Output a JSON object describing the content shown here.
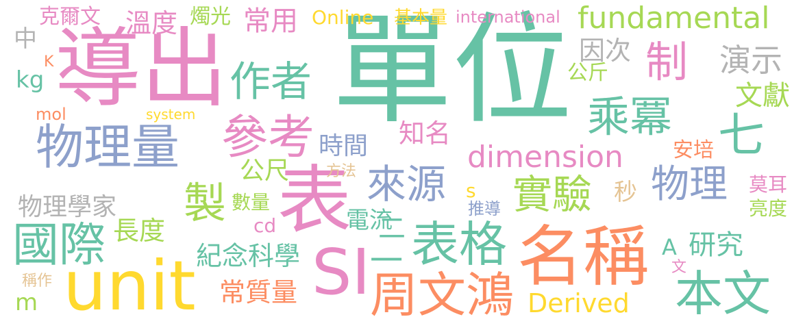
{
  "palette": {
    "green": "#66c2a5",
    "orange": "#fc8d62",
    "blue": "#8da0cb",
    "pink": "#e78ac3",
    "lime": "#a6d854",
    "yellow": "#ffd92f",
    "tan": "#e5c494",
    "grey": "#b3b3b3"
  },
  "words": [
    {
      "text": "單位",
      "color": "green"
    },
    {
      "text": "導出",
      "color": "pink"
    },
    {
      "text": "unit",
      "color": "yellow"
    },
    {
      "text": "名稱",
      "color": "orange"
    },
    {
      "text": "表",
      "color": "pink"
    },
    {
      "text": "SI",
      "color": "pink"
    },
    {
      "text": "物理量",
      "color": "blue"
    },
    {
      "text": "周文鴻",
      "color": "orange"
    },
    {
      "text": "國際",
      "color": "green"
    },
    {
      "text": "表格",
      "color": "green"
    },
    {
      "text": "參考",
      "color": "pink"
    },
    {
      "text": "來源",
      "color": "blue"
    },
    {
      "text": "物理",
      "color": "blue"
    },
    {
      "text": "本文",
      "color": "green"
    },
    {
      "text": "實驗",
      "color": "lime"
    },
    {
      "text": "製",
      "color": "lime"
    },
    {
      "text": "作者",
      "color": "green"
    },
    {
      "text": "制",
      "color": "pink"
    },
    {
      "text": "乘冪",
      "color": "green"
    },
    {
      "text": "七",
      "color": "green"
    },
    {
      "text": "fundamental",
      "color": "lime"
    },
    {
      "text": "dimension",
      "color": "pink"
    },
    {
      "text": "Derived",
      "color": "yellow"
    },
    {
      "text": "研究",
      "color": "green"
    },
    {
      "text": "演示",
      "color": "grey"
    },
    {
      "text": "物理學家",
      "color": "grey"
    },
    {
      "text": "紀念科學",
      "color": "green"
    },
    {
      "text": "常質量",
      "color": "orange"
    },
    {
      "text": "長度",
      "color": "lime"
    },
    {
      "text": "電流",
      "color": "green"
    },
    {
      "text": "文獻",
      "color": "lime"
    },
    {
      "text": "時間",
      "color": "blue"
    },
    {
      "text": "知名",
      "color": "pink"
    },
    {
      "text": "常用",
      "color": "pink"
    },
    {
      "text": "溫度",
      "color": "pink"
    },
    {
      "text": "燭光",
      "color": "lime"
    },
    {
      "text": "克爾文",
      "color": "pink"
    },
    {
      "text": "因次",
      "color": "grey"
    },
    {
      "text": "公斤",
      "color": "lime"
    },
    {
      "text": "安培",
      "color": "orange"
    },
    {
      "text": "公尺",
      "color": "lime"
    },
    {
      "text": "數量",
      "color": "lime"
    },
    {
      "text": "莫耳",
      "color": "pink"
    },
    {
      "text": "亮度",
      "color": "lime"
    },
    {
      "text": "Online",
      "color": "yellow"
    },
    {
      "text": "基本量",
      "color": "yellow"
    },
    {
      "text": "international",
      "color": "pink"
    },
    {
      "text": "kg",
      "color": "green"
    },
    {
      "text": "mol",
      "color": "orange"
    },
    {
      "text": "system",
      "color": "yellow"
    },
    {
      "text": "cd",
      "color": "pink"
    },
    {
      "text": "推導",
      "color": "blue"
    },
    {
      "text": "方法",
      "color": "tan"
    },
    {
      "text": "秒",
      "color": "tan"
    },
    {
      "text": "A",
      "color": "green"
    },
    {
      "text": "文",
      "color": "pink"
    },
    {
      "text": "稱作",
      "color": "tan"
    },
    {
      "text": "m",
      "color": "lime"
    },
    {
      "text": "s",
      "color": "yellow"
    },
    {
      "text": "中",
      "color": "grey"
    },
    {
      "text": "K",
      "color": "orange"
    },
    {
      "text": "二",
      "color": "green"
    },
    {
      "text": "一",
      "color": "green"
    }
  ]
}
